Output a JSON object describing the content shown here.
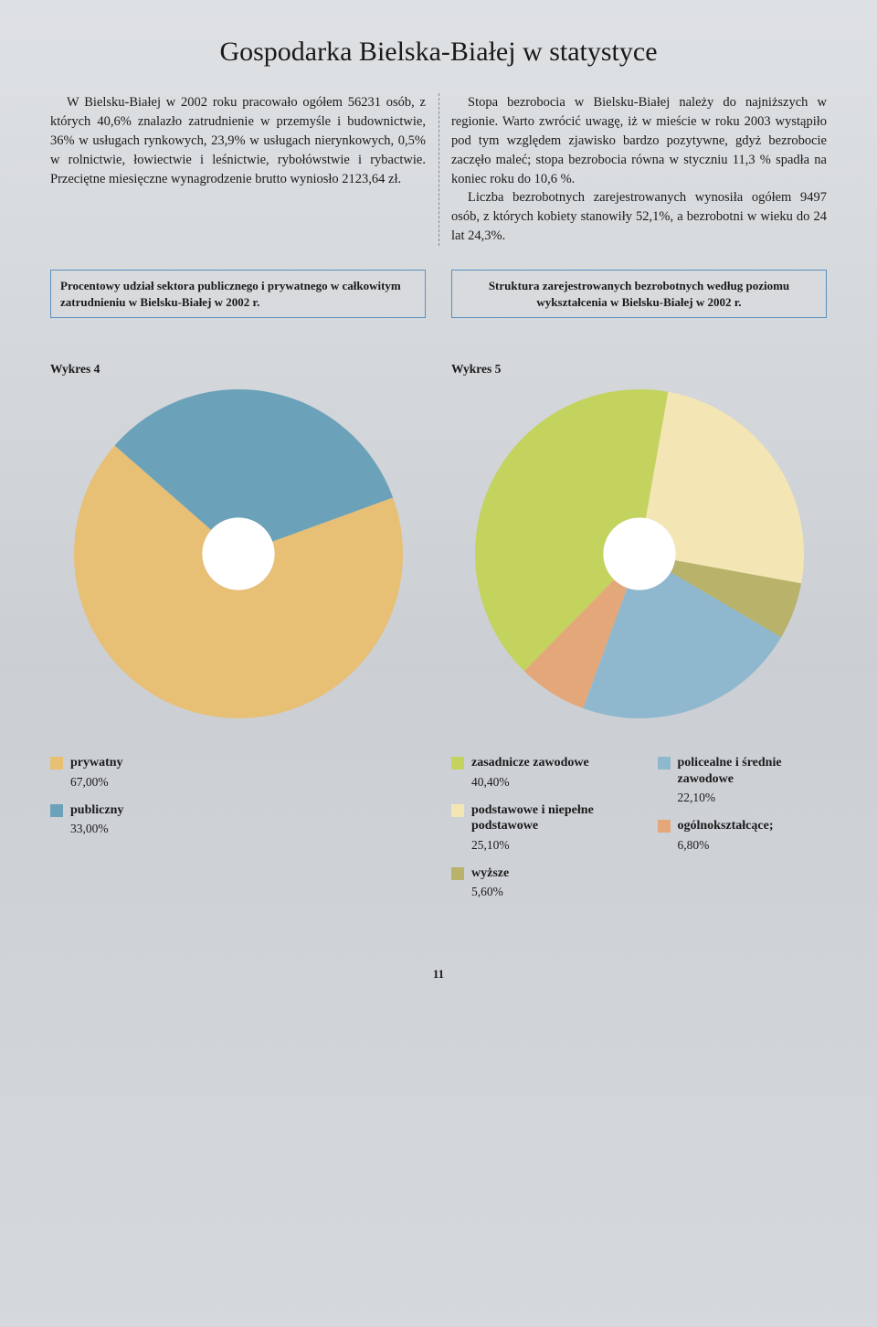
{
  "page": {
    "title": "Gospodarka Bielska-Białej w statystyce",
    "number": "11"
  },
  "text": {
    "left_p1": "W Bielsku-Białej w 2002 roku pracowało ogółem 56231 osób, z których 40,6% znalazło zatrudnienie w przemyśle i budownictwie, 36% w usługach rynkowych, 23,9% w usługach nierynkowych, 0,5% w rolnictwie, łowiectwie i leśnictwie, rybołówstwie i rybactwie. Przeciętne miesięczne wynagrodzenie brutto wyniosło 2123,64 zł.",
    "right_p1": "Stopa bezrobocia w Bielsku-Białej należy do najniższych w regionie. Warto zwrócić uwagę, iż w mieście w roku 2003 wystąpiło pod tym względem zjawisko bardzo pozytywne, gdyż bezrobocie zaczęło maleć; stopa bezrobocia równa w styczniu 11,3 % spadła na koniec roku do 10,6 %.",
    "right_p2": "Liczba bezrobotnych zarejestrowanych wynosiła ogółem 9497 osób, z których kobiety stanowiły 52,1%, a bezrobotni w wieku do 24 lat 24,3%."
  },
  "chart4": {
    "caption": "Procentowy udział sektora publicznego i prywatnego w całkowitym zatrudnieniu w Bielsku-Białej w 2002 r.",
    "label": "Wykres 4",
    "type": "donut",
    "inner_radius": 0.22,
    "outer_radius": 1.0,
    "size": 360,
    "start_angle": -20,
    "background": "transparent",
    "slices": [
      {
        "label": "prywatny",
        "value": 67.0,
        "value_str": "67,00%",
        "color": "#e7bf75"
      },
      {
        "label": "publiczny",
        "value": 33.0,
        "value_str": "33,00%",
        "color": "#6ba2b9"
      }
    ]
  },
  "chart5": {
    "caption": "Struktura zarejestrowanych bezrobotnych według poziomu wykształcenia w Bielsku-Białej w 2002 r.",
    "label": "Wykres 5",
    "type": "donut",
    "inner_radius": 0.22,
    "outer_radius": 1.0,
    "size": 360,
    "start_angle": -80,
    "background": "transparent",
    "slices": [
      {
        "label": "podstawowe i niepełne podstawowe",
        "value": 25.1,
        "value_str": "25,10%",
        "color": "#f3e6b4"
      },
      {
        "label": "wyższe",
        "value": 5.6,
        "value_str": "5,60%",
        "color": "#b8b26a"
      },
      {
        "label": "policealne i średnie zawodowe",
        "value": 22.1,
        "value_str": "22,10%",
        "color": "#8fb8cf"
      },
      {
        "label": "ogólnokształcące;",
        "value": 6.8,
        "value_str": "6,80%",
        "color": "#e3a77a"
      },
      {
        "label": "zasadnicze zawodowe",
        "value": 40.4,
        "value_str": "40,40%",
        "color": "#c4d35d"
      }
    ],
    "legend_order_col1": [
      4,
      0,
      1
    ],
    "legend_order_col2": [
      2,
      3
    ]
  },
  "colors": {
    "border_box": "#5a8fbf",
    "text": "#1a1a1a"
  }
}
